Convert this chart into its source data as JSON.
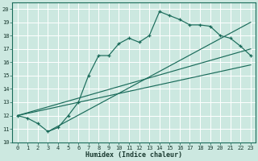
{
  "xlabel": "Humidex (Indice chaleur)",
  "bg_color": "#cce8e0",
  "grid_color": "#ffffff",
  "line_color": "#1a6b5a",
  "xlim": [
    -0.5,
    23.5
  ],
  "ylim": [
    10,
    20.5
  ],
  "xticks": [
    0,
    1,
    2,
    3,
    4,
    5,
    6,
    7,
    8,
    9,
    10,
    11,
    12,
    13,
    14,
    15,
    16,
    17,
    18,
    19,
    20,
    21,
    22,
    23
  ],
  "yticks": [
    10,
    11,
    12,
    13,
    14,
    15,
    16,
    17,
    18,
    19,
    20
  ],
  "marker_x": [
    0,
    1,
    2,
    3,
    4,
    5,
    6,
    7,
    8,
    9,
    10,
    11,
    12,
    13,
    14,
    15,
    16,
    17,
    18,
    19,
    20,
    21,
    22,
    23
  ],
  "marker_y": [
    12.0,
    11.8,
    11.4,
    10.8,
    11.1,
    12.0,
    13.0,
    15.0,
    16.5,
    16.5,
    17.4,
    17.8,
    17.5,
    18.0,
    19.8,
    19.5,
    19.2,
    18.8,
    18.8,
    18.7,
    18.0,
    17.8,
    17.2,
    16.5
  ],
  "line1_x": [
    0,
    23
  ],
  "line1_y": [
    12.0,
    17.0
  ],
  "line2_x": [
    0,
    23
  ],
  "line2_y": [
    12.0,
    15.8
  ],
  "line3_x": [
    3,
    23
  ],
  "line3_y": [
    10.8,
    19.0
  ],
  "xlabel_fontsize": 6,
  "tick_fontsize": 5
}
